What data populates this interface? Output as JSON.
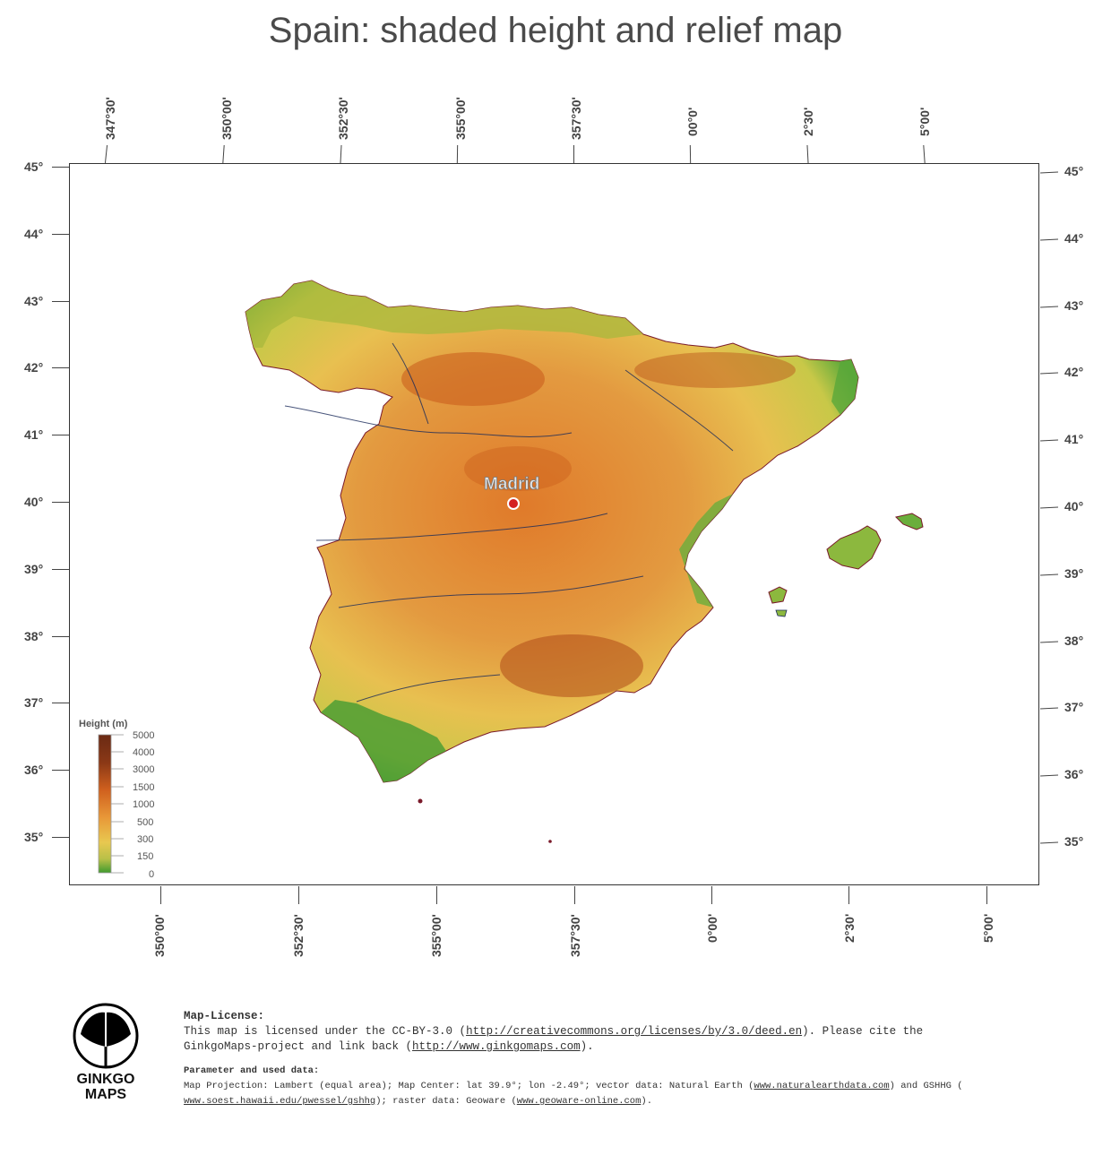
{
  "title": "Spain: shaded height and relief map",
  "top_axis": [
    "347°30'",
    "350°00'",
    "352°30'",
    "355°00'",
    "357°30'",
    "00°0'",
    "2°30'",
    "5°00'"
  ],
  "bottom_axis": [
    "350°00'",
    "352°30'",
    "355°00'",
    "357°30'",
    "0°00'",
    "2°30'",
    "5°00'"
  ],
  "left_axis": [
    "45°",
    "44°",
    "43°",
    "42°",
    "41°",
    "40°",
    "39°",
    "38°",
    "37°",
    "36°",
    "35°"
  ],
  "right_axis": [
    "45°",
    "44°",
    "43°",
    "42°",
    "41°",
    "40°",
    "39°",
    "38°",
    "37°",
    "36°",
    "35°"
  ],
  "city": {
    "name": "Madrid"
  },
  "legend": {
    "title": "Height  (m)",
    "values": [
      "5000",
      "4000",
      "3000",
      "1500",
      "1000",
      "500",
      "300",
      "150",
      "0"
    ]
  },
  "logo": {
    "line1": "GINKGO",
    "line2": "MAPS"
  },
  "license": {
    "heading": "Map-License:",
    "line1_prefix": "This map is licensed under the CC-BY-3.0 (",
    "line1_link": "http://creativecommons.org/licenses/by/3.0/deed.en",
    "line1_suffix": ").  Please cite the",
    "line2_prefix": "GinkgoMaps-project and link back (",
    "line2_link": "http://www.ginkgomaps.com",
    "line2_suffix": ")."
  },
  "params": {
    "heading": "Parameter and used data:",
    "line1_prefix": "Map Projection: Lambert (equal area); Map Center: lat 39.9°; lon -2.49°; vector data: Natural Earth (",
    "line1_link": "www.naturalearthdata.com",
    "line1_suffix": ") and GSHHG (",
    "line2_link": "www.soest.hawaii.edu/pwessel/gshhg",
    "line2_mid": "); raster data: Geoware (",
    "line2_link2": "www.geoware-online.com",
    "line2_suffix": ")."
  },
  "colors": {
    "low": "#3f9a2e",
    "mid": "#e6c24a",
    "high": "#d86a1e",
    "peak": "#7a2c10"
  }
}
